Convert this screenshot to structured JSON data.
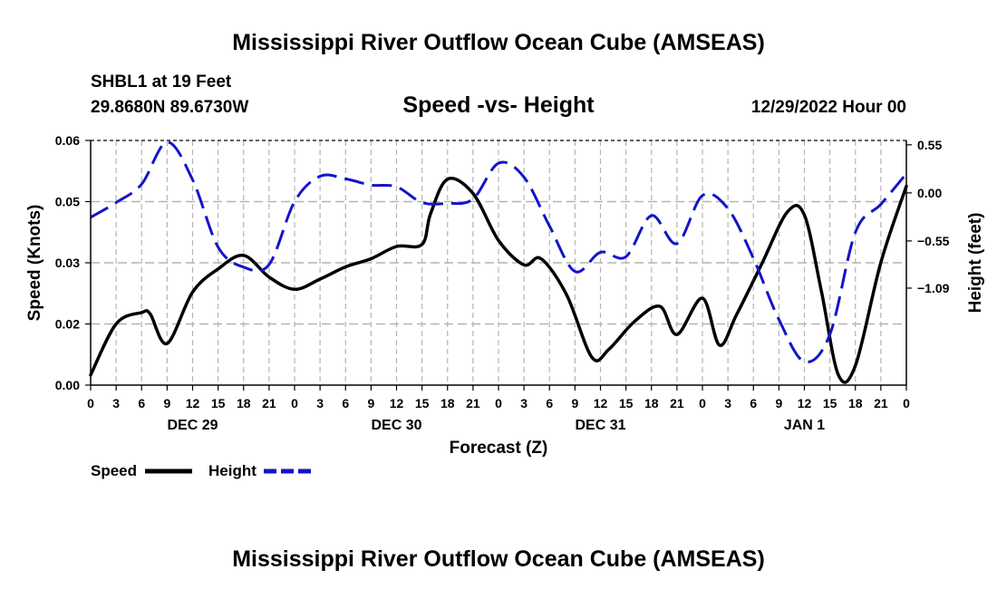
{
  "page": {
    "title": "Mississippi River Outflow Ocean Cube (AMSEAS)",
    "station": "SHBL1 at 19 Feet",
    "coords": "29.8680N  89.6730W",
    "plot_title": "Speed -vs- Height",
    "run_time": "12/29/2022 Hour 00",
    "footer_title": "Mississippi River Outflow Ocean Cube (AMSEAS)"
  },
  "chart_data": {
    "type": "line",
    "title": "Speed -vs- Height",
    "xlabel": "Forecast (Z)",
    "ylabel": "Speed (Knots)",
    "y2label": "Height (feet)",
    "grid": true,
    "x_range_hours": [
      0,
      96
    ],
    "ylim": [
      0,
      0.06
    ],
    "y2lim": [
      -2.2,
      0.6
    ],
    "x_ticks": [
      {
        "h": 0,
        "label": "0"
      },
      {
        "h": 3,
        "label": "3"
      },
      {
        "h": 6,
        "label": "6"
      },
      {
        "h": 9,
        "label": "9"
      },
      {
        "h": 12,
        "label": "12"
      },
      {
        "h": 15,
        "label": "15"
      },
      {
        "h": 18,
        "label": "18"
      },
      {
        "h": 21,
        "label": "21"
      },
      {
        "h": 24,
        "label": "0"
      },
      {
        "h": 27,
        "label": "3"
      },
      {
        "h": 30,
        "label": "6"
      },
      {
        "h": 33,
        "label": "9"
      },
      {
        "h": 36,
        "label": "12"
      },
      {
        "h": 39,
        "label": "15"
      },
      {
        "h": 42,
        "label": "18"
      },
      {
        "h": 45,
        "label": "21"
      },
      {
        "h": 48,
        "label": "0"
      },
      {
        "h": 51,
        "label": "3"
      },
      {
        "h": 54,
        "label": "6"
      },
      {
        "h": 57,
        "label": "9"
      },
      {
        "h": 60,
        "label": "12"
      },
      {
        "h": 63,
        "label": "15"
      },
      {
        "h": 66,
        "label": "18"
      },
      {
        "h": 69,
        "label": "21"
      },
      {
        "h": 72,
        "label": "0"
      },
      {
        "h": 75,
        "label": "3"
      },
      {
        "h": 78,
        "label": "6"
      },
      {
        "h": 81,
        "label": "9"
      },
      {
        "h": 84,
        "label": "12"
      },
      {
        "h": 87,
        "label": "15"
      },
      {
        "h": 90,
        "label": "18"
      },
      {
        "h": 93,
        "label": "21"
      },
      {
        "h": 96,
        "label": "0"
      }
    ],
    "day_labels": [
      {
        "h": 12,
        "label": "DEC 29"
      },
      {
        "h": 36,
        "label": "DEC 30"
      },
      {
        "h": 60,
        "label": "DEC 31"
      },
      {
        "h": 84,
        "label": "JAN 1"
      }
    ],
    "y_ticks": [
      {
        "v": 0.0,
        "label": "0.00"
      },
      {
        "v": 0.015,
        "label": "0.02"
      },
      {
        "v": 0.03,
        "label": "0.03"
      },
      {
        "v": 0.045,
        "label": "0.05"
      },
      {
        "v": 0.06,
        "label": "0.06"
      }
    ],
    "y2_ticks": [
      {
        "v": 0.55,
        "label": "0.55"
      },
      {
        "v": 0.0,
        "label": "0.00"
      },
      {
        "v": -0.55,
        "label": "−0.55"
      },
      {
        "v": -1.09,
        "label": "−1.09"
      }
    ],
    "series": [
      {
        "name": "Speed",
        "axis": "left",
        "color": "#000000",
        "dashed": false,
        "x": [
          0,
          3,
          6,
          7,
          9,
          12,
          15,
          18,
          21,
          24,
          27,
          30,
          33,
          36,
          39,
          40,
          42,
          45,
          48,
          51,
          53,
          56,
          59,
          61,
          64,
          67,
          69,
          72,
          74,
          76,
          79,
          82,
          84,
          86,
          88,
          90,
          93,
          96
        ],
        "y": [
          0.0025,
          0.015,
          0.0178,
          0.0175,
          0.0102,
          0.0228,
          0.0285,
          0.0318,
          0.0265,
          0.0235,
          0.026,
          0.029,
          0.031,
          0.034,
          0.0345,
          0.042,
          0.0505,
          0.047,
          0.0355,
          0.0295,
          0.031,
          0.0222,
          0.0068,
          0.0088,
          0.0156,
          0.0193,
          0.0124,
          0.0213,
          0.0098,
          0.0172,
          0.0298,
          0.0425,
          0.0417,
          0.023,
          0.0025,
          0.0048,
          0.0301,
          0.0488
        ]
      },
      {
        "name": "Height",
        "axis": "right",
        "color": "#1414c8",
        "dashed": true,
        "x": [
          0,
          3,
          6,
          9,
          12,
          15,
          18,
          21,
          24,
          27,
          30,
          33,
          36,
          39,
          42,
          45,
          48,
          51,
          54,
          57,
          60,
          63,
          66,
          69,
          72,
          75,
          78,
          81,
          84,
          87,
          90,
          93,
          96
        ],
        "y": [
          -0.28,
          -0.11,
          0.1,
          0.58,
          0.15,
          -0.62,
          -0.85,
          -0.82,
          -0.1,
          0.19,
          0.16,
          0.09,
          0.07,
          -0.11,
          -0.12,
          -0.07,
          0.34,
          0.18,
          -0.38,
          -0.9,
          -0.68,
          -0.73,
          -0.26,
          -0.58,
          -0.03,
          -0.18,
          -0.75,
          -1.45,
          -1.93,
          -1.62,
          -0.45,
          -0.13,
          0.22
        ]
      }
    ]
  }
}
